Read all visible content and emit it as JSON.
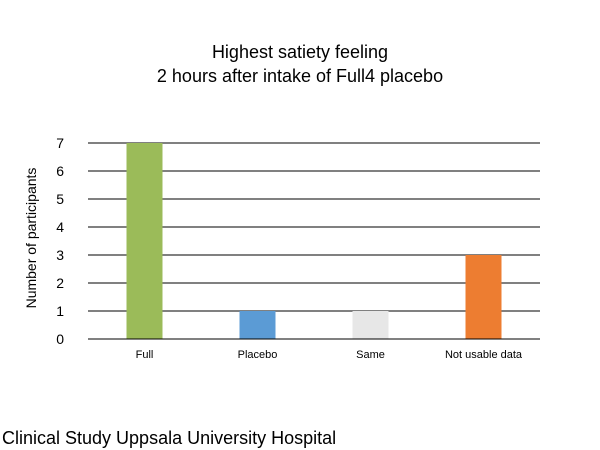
{
  "chart_data": {
    "type": "bar",
    "title_lines": [
      "Highest satiety feeling",
      "2 hours after intake of Full4 placebo"
    ],
    "xlabel": "",
    "ylabel": "Number of participants",
    "categories": [
      "Full",
      "Placebo",
      "Same",
      "Not usable data"
    ],
    "values": [
      7,
      1,
      1,
      3
    ],
    "bar_colors": [
      "#9BBB59",
      "#5B9BD5",
      "#E7E7E7",
      "#ED7D31"
    ],
    "ylim": [
      0,
      7
    ],
    "yticks": [
      0,
      1,
      2,
      3,
      4,
      5,
      6,
      7
    ],
    "grid": true,
    "legend": "none"
  },
  "footer": {
    "text": "Clinical Study Uppsala University Hospital"
  }
}
